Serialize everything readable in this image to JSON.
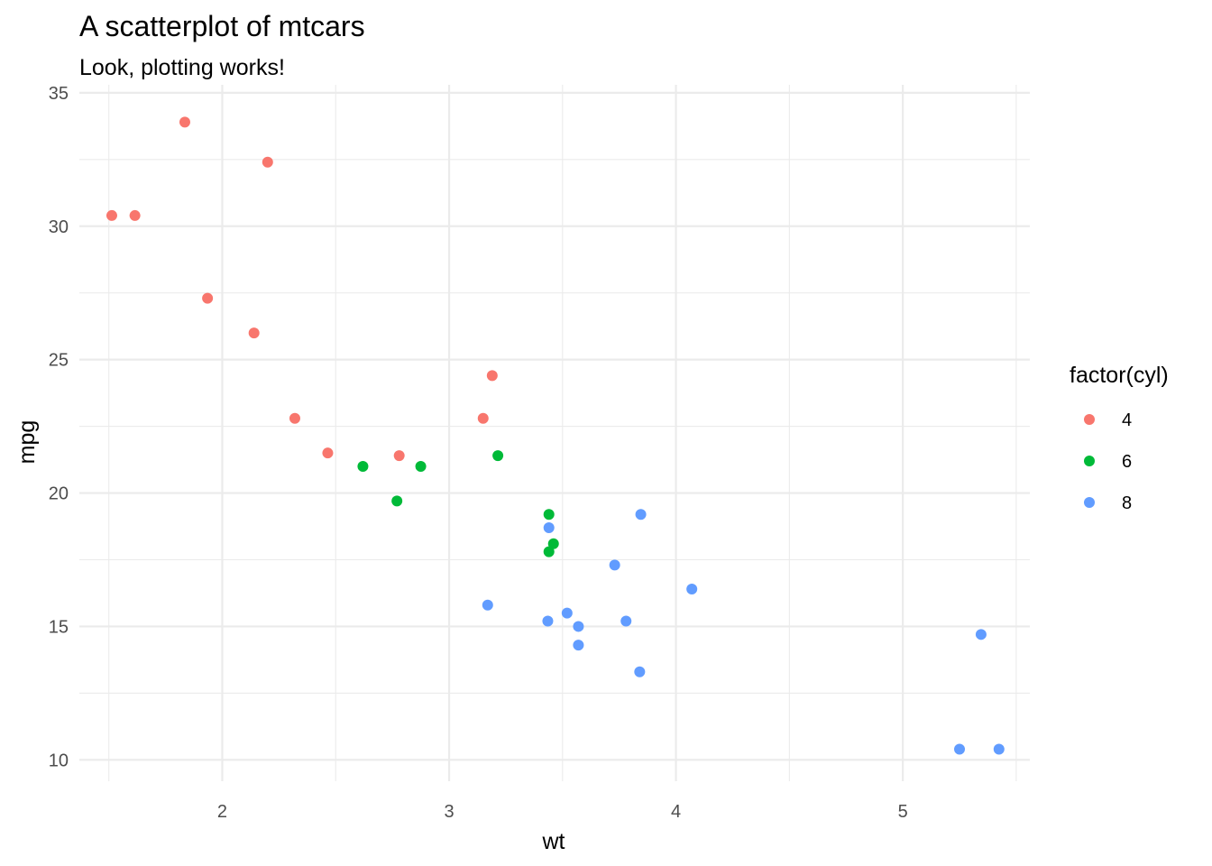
{
  "chart_data": {
    "type": "scatter",
    "title": "A scatterplot of mtcars",
    "subtitle": "Look, plotting works!",
    "xlabel": "wt",
    "ylabel": "mpg",
    "xlim": [
      1.37,
      5.56
    ],
    "ylim": [
      9.2,
      35.3
    ],
    "x_major_ticks": [
      2,
      3,
      4,
      5
    ],
    "x_minor_ticks": [
      1.5,
      2.5,
      3.5,
      4.5,
      5.5
    ],
    "y_major_ticks": [
      10,
      15,
      20,
      25,
      30,
      35
    ],
    "y_minor_ticks": [
      12.5,
      17.5,
      22.5,
      27.5,
      32.5
    ],
    "grid": true,
    "legend": {
      "title": "factor(cyl)",
      "placement": "right"
    },
    "series": [
      {
        "name": "4",
        "color": "#F8766D",
        "points": [
          {
            "x": 2.32,
            "y": 22.8
          },
          {
            "x": 3.19,
            "y": 24.4
          },
          {
            "x": 3.15,
            "y": 22.8
          },
          {
            "x": 2.2,
            "y": 32.4
          },
          {
            "x": 1.615,
            "y": 30.4
          },
          {
            "x": 1.835,
            "y": 33.9
          },
          {
            "x": 2.465,
            "y": 21.5
          },
          {
            "x": 1.935,
            "y": 27.3
          },
          {
            "x": 2.14,
            "y": 26.0
          },
          {
            "x": 1.513,
            "y": 30.4
          },
          {
            "x": 2.78,
            "y": 21.4
          }
        ]
      },
      {
        "name": "6",
        "color": "#00BA38",
        "points": [
          {
            "x": 2.62,
            "y": 21.0
          },
          {
            "x": 2.875,
            "y": 21.0
          },
          {
            "x": 3.215,
            "y": 21.4
          },
          {
            "x": 3.46,
            "y": 18.1
          },
          {
            "x": 3.44,
            "y": 19.2
          },
          {
            "x": 3.44,
            "y": 17.8
          },
          {
            "x": 2.77,
            "y": 19.7
          }
        ]
      },
      {
        "name": "8",
        "color": "#619CFF",
        "points": [
          {
            "x": 3.44,
            "y": 18.7
          },
          {
            "x": 3.57,
            "y": 14.3
          },
          {
            "x": 4.07,
            "y": 16.4
          },
          {
            "x": 3.73,
            "y": 17.3
          },
          {
            "x": 3.78,
            "y": 15.2
          },
          {
            "x": 5.25,
            "y": 10.4
          },
          {
            "x": 5.424,
            "y": 10.4
          },
          {
            "x": 5.345,
            "y": 14.7
          },
          {
            "x": 3.52,
            "y": 15.5
          },
          {
            "x": 3.435,
            "y": 15.2
          },
          {
            "x": 3.84,
            "y": 13.3
          },
          {
            "x": 3.845,
            "y": 19.2
          },
          {
            "x": 3.17,
            "y": 15.8
          },
          {
            "x": 3.57,
            "y": 15.0
          }
        ]
      }
    ]
  }
}
